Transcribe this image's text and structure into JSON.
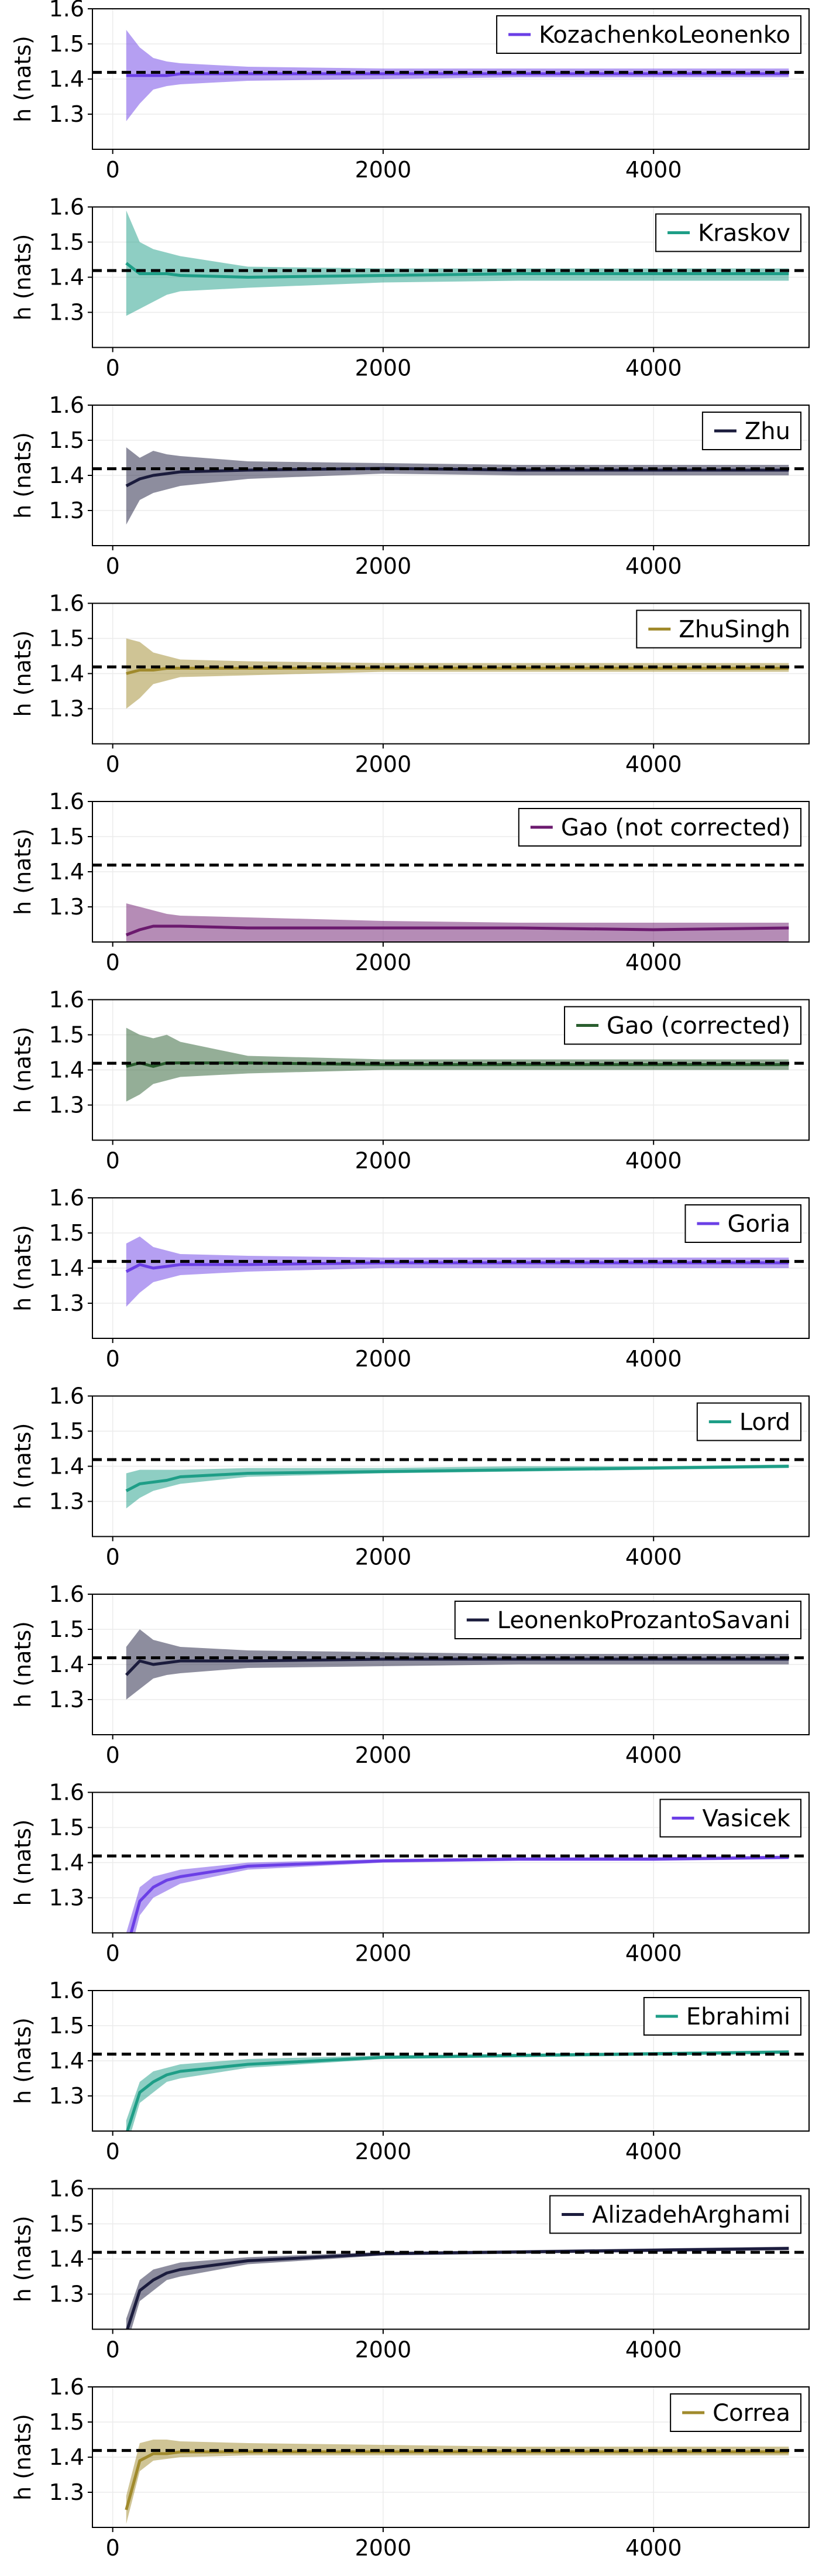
{
  "chart_data": [
    {
      "type": "line",
      "series": [
        {
          "name": "KozachenkoLeonenko",
          "color": "#6b3fe6",
          "x": [
            100,
            200,
            300,
            400,
            500,
            1000,
            2000,
            3000,
            4000,
            5000
          ],
          "mean": [
            1.41,
            1.41,
            1.41,
            1.41,
            1.415,
            1.415,
            1.415,
            1.415,
            1.415,
            1.415
          ],
          "lower": [
            1.28,
            1.33,
            1.37,
            1.38,
            1.385,
            1.395,
            1.4,
            1.405,
            1.405,
            1.405
          ],
          "upper": [
            1.54,
            1.49,
            1.46,
            1.45,
            1.445,
            1.435,
            1.43,
            1.43,
            1.43,
            1.43
          ]
        }
      ],
      "reference_line": 1.4189,
      "xlim": [
        -150,
        5150
      ],
      "ylim": [
        1.2,
        1.6
      ],
      "xticks": [
        0,
        2000,
        4000
      ],
      "yticks": [
        1.3,
        1.4,
        1.5,
        1.6
      ],
      "ylabel": "h (nats)",
      "grid": true,
      "legend_position": "top-right"
    },
    {
      "type": "line",
      "series": [
        {
          "name": "Kraskov",
          "color": "#1e9e87",
          "x": [
            100,
            200,
            300,
            400,
            500,
            1000,
            2000,
            3000,
            4000,
            5000
          ],
          "mean": [
            1.44,
            1.41,
            1.41,
            1.41,
            1.405,
            1.4,
            1.405,
            1.41,
            1.41,
            1.41
          ],
          "lower": [
            1.29,
            1.31,
            1.33,
            1.35,
            1.36,
            1.37,
            1.385,
            1.39,
            1.39,
            1.39
          ],
          "upper": [
            1.59,
            1.5,
            1.48,
            1.47,
            1.46,
            1.43,
            1.425,
            1.425,
            1.425,
            1.425
          ]
        }
      ],
      "reference_line": 1.4189,
      "xlim": [
        -150,
        5150
      ],
      "ylim": [
        1.2,
        1.6
      ],
      "xticks": [
        0,
        2000,
        4000
      ],
      "yticks": [
        1.3,
        1.4,
        1.5,
        1.6
      ],
      "ylabel": "h (nats)",
      "grid": true,
      "legend_position": "top-right"
    },
    {
      "type": "line",
      "series": [
        {
          "name": "Zhu",
          "color": "#1b1c3d",
          "x": [
            100,
            200,
            300,
            400,
            500,
            1000,
            2000,
            3000,
            4000,
            5000
          ],
          "mean": [
            1.37,
            1.39,
            1.4,
            1.405,
            1.41,
            1.415,
            1.42,
            1.415,
            1.415,
            1.415
          ],
          "lower": [
            1.26,
            1.33,
            1.35,
            1.36,
            1.37,
            1.39,
            1.405,
            1.4,
            1.4,
            1.4
          ],
          "upper": [
            1.48,
            1.45,
            1.47,
            1.46,
            1.455,
            1.44,
            1.435,
            1.43,
            1.43,
            1.43
          ]
        }
      ],
      "reference_line": 1.4189,
      "xlim": [
        -150,
        5150
      ],
      "ylim": [
        1.2,
        1.6
      ],
      "xticks": [
        0,
        2000,
        4000
      ],
      "yticks": [
        1.3,
        1.4,
        1.5,
        1.6
      ],
      "ylabel": "h (nats)",
      "grid": true,
      "legend_position": "top-right"
    },
    {
      "type": "line",
      "series": [
        {
          "name": "ZhuSingh",
          "color": "#a08a2c",
          "x": [
            100,
            200,
            300,
            400,
            500,
            1000,
            2000,
            3000,
            4000,
            5000
          ],
          "mean": [
            1.4,
            1.41,
            1.41,
            1.415,
            1.415,
            1.415,
            1.415,
            1.415,
            1.415,
            1.415
          ],
          "lower": [
            1.3,
            1.33,
            1.37,
            1.38,
            1.39,
            1.395,
            1.405,
            1.405,
            1.405,
            1.405
          ],
          "upper": [
            1.5,
            1.49,
            1.46,
            1.45,
            1.44,
            1.435,
            1.43,
            1.43,
            1.43,
            1.43
          ]
        }
      ],
      "reference_line": 1.4189,
      "xlim": [
        -150,
        5150
      ],
      "ylim": [
        1.2,
        1.6
      ],
      "xticks": [
        0,
        2000,
        4000
      ],
      "yticks": [
        1.3,
        1.4,
        1.5,
        1.6
      ],
      "ylabel": "h (nats)",
      "grid": true,
      "legend_position": "top-right"
    },
    {
      "type": "line",
      "series": [
        {
          "name": "Gao (not corrected)",
          "color": "#6b1a6e",
          "x": [
            100,
            200,
            300,
            400,
            500,
            1000,
            2000,
            3000,
            4000,
            5000
          ],
          "mean": [
            1.22,
            1.235,
            1.245,
            1.245,
            1.245,
            1.24,
            1.24,
            1.24,
            1.235,
            1.24
          ],
          "lower": [
            1.2,
            1.2,
            1.2,
            1.2,
            1.2,
            1.2,
            1.2,
            1.2,
            1.2,
            1.2
          ],
          "upper": [
            1.31,
            1.3,
            1.29,
            1.28,
            1.275,
            1.27,
            1.26,
            1.255,
            1.255,
            1.255
          ]
        }
      ],
      "reference_line": 1.4189,
      "xlim": [
        -150,
        5150
      ],
      "ylim": [
        1.2,
        1.6
      ],
      "xticks": [
        0,
        2000,
        4000
      ],
      "yticks": [
        1.3,
        1.4,
        1.5,
        1.6
      ],
      "ylabel": "h (nats)",
      "grid": true,
      "legend_position": "top-right"
    },
    {
      "type": "line",
      "series": [
        {
          "name": "Gao (corrected)",
          "color": "#2a5e2f",
          "x": [
            100,
            200,
            300,
            400,
            500,
            1000,
            2000,
            3000,
            4000,
            5000
          ],
          "mean": [
            1.41,
            1.42,
            1.41,
            1.42,
            1.42,
            1.42,
            1.415,
            1.415,
            1.415,
            1.415
          ],
          "lower": [
            1.31,
            1.33,
            1.36,
            1.37,
            1.38,
            1.39,
            1.4,
            1.4,
            1.4,
            1.4
          ],
          "upper": [
            1.52,
            1.5,
            1.49,
            1.5,
            1.48,
            1.44,
            1.43,
            1.43,
            1.43,
            1.43
          ]
        }
      ],
      "reference_line": 1.4189,
      "xlim": [
        -150,
        5150
      ],
      "ylim": [
        1.2,
        1.6
      ],
      "xticks": [
        0,
        2000,
        4000
      ],
      "yticks": [
        1.3,
        1.4,
        1.5,
        1.6
      ],
      "ylabel": "h (nats)",
      "grid": true,
      "legend_position": "top-right"
    },
    {
      "type": "line",
      "series": [
        {
          "name": "Goria",
          "color": "#6b3fe6",
          "x": [
            100,
            200,
            300,
            400,
            500,
            1000,
            2000,
            3000,
            4000,
            5000
          ],
          "mean": [
            1.39,
            1.41,
            1.4,
            1.405,
            1.41,
            1.41,
            1.415,
            1.415,
            1.415,
            1.415
          ],
          "lower": [
            1.29,
            1.33,
            1.36,
            1.37,
            1.38,
            1.39,
            1.4,
            1.4,
            1.4,
            1.4
          ],
          "upper": [
            1.47,
            1.49,
            1.46,
            1.45,
            1.44,
            1.435,
            1.43,
            1.43,
            1.43,
            1.43
          ]
        }
      ],
      "reference_line": 1.4189,
      "xlim": [
        -150,
        5150
      ],
      "ylim": [
        1.2,
        1.6
      ],
      "xticks": [
        0,
        2000,
        4000
      ],
      "yticks": [
        1.3,
        1.4,
        1.5,
        1.6
      ],
      "ylabel": "h (nats)",
      "grid": true,
      "legend_position": "top-right"
    },
    {
      "type": "line",
      "series": [
        {
          "name": "Lord",
          "color": "#1e9e87",
          "x": [
            100,
            200,
            300,
            400,
            500,
            1000,
            2000,
            3000,
            4000,
            5000
          ],
          "mean": [
            1.33,
            1.35,
            1.355,
            1.36,
            1.37,
            1.38,
            1.385,
            1.39,
            1.395,
            1.4
          ],
          "lower": [
            1.28,
            1.31,
            1.33,
            1.34,
            1.35,
            1.37,
            1.38,
            1.385,
            1.39,
            1.395
          ],
          "upper": [
            1.38,
            1.39,
            1.39,
            1.39,
            1.39,
            1.395,
            1.395,
            1.4,
            1.4,
            1.405
          ]
        }
      ],
      "reference_line": 1.4189,
      "xlim": [
        -150,
        5150
      ],
      "ylim": [
        1.2,
        1.6
      ],
      "xticks": [
        0,
        2000,
        4000
      ],
      "yticks": [
        1.3,
        1.4,
        1.5,
        1.6
      ],
      "ylabel": "h (nats)",
      "grid": true,
      "legend_position": "top-right"
    },
    {
      "type": "line",
      "series": [
        {
          "name": "LeonenkoProzantoSavani",
          "color": "#1b1c3d",
          "x": [
            100,
            200,
            300,
            400,
            500,
            1000,
            2000,
            3000,
            4000,
            5000
          ],
          "mean": [
            1.37,
            1.41,
            1.4,
            1.405,
            1.41,
            1.41,
            1.415,
            1.415,
            1.415,
            1.415
          ],
          "lower": [
            1.3,
            1.33,
            1.36,
            1.37,
            1.375,
            1.39,
            1.395,
            1.4,
            1.4,
            1.4
          ],
          "upper": [
            1.45,
            1.5,
            1.47,
            1.46,
            1.45,
            1.44,
            1.435,
            1.43,
            1.43,
            1.43
          ]
        }
      ],
      "reference_line": 1.4189,
      "xlim": [
        -150,
        5150
      ],
      "ylim": [
        1.2,
        1.6
      ],
      "xticks": [
        0,
        2000,
        4000
      ],
      "yticks": [
        1.3,
        1.4,
        1.5,
        1.6
      ],
      "ylabel": "h (nats)",
      "grid": true,
      "legend_position": "top-right"
    },
    {
      "type": "line",
      "series": [
        {
          "name": "Vasicek",
          "color": "#6b3fe6",
          "x": [
            100,
            200,
            300,
            400,
            500,
            1000,
            2000,
            3000,
            4000,
            5000
          ],
          "mean": [
            1.15,
            1.29,
            1.33,
            1.35,
            1.36,
            1.39,
            1.405,
            1.41,
            1.41,
            1.415
          ],
          "lower": [
            1.1,
            1.25,
            1.3,
            1.32,
            1.34,
            1.38,
            1.4,
            1.405,
            1.405,
            1.41
          ],
          "upper": [
            1.2,
            1.33,
            1.36,
            1.37,
            1.38,
            1.4,
            1.41,
            1.415,
            1.415,
            1.42
          ]
        }
      ],
      "reference_line": 1.4189,
      "xlim": [
        -150,
        5150
      ],
      "ylim": [
        1.2,
        1.6
      ],
      "xticks": [
        0,
        2000,
        4000
      ],
      "yticks": [
        1.3,
        1.4,
        1.5,
        1.6
      ],
      "ylabel": "h (nats)",
      "grid": true,
      "legend_position": "top-right"
    },
    {
      "type": "line",
      "series": [
        {
          "name": "Ebrahimi",
          "color": "#1e9e87",
          "x": [
            100,
            200,
            300,
            400,
            500,
            1000,
            2000,
            3000,
            4000,
            5000
          ],
          "mean": [
            1.19,
            1.31,
            1.34,
            1.36,
            1.37,
            1.39,
            1.41,
            1.415,
            1.42,
            1.425
          ],
          "lower": [
            1.15,
            1.28,
            1.31,
            1.34,
            1.35,
            1.38,
            1.405,
            1.41,
            1.415,
            1.42
          ],
          "upper": [
            1.23,
            1.34,
            1.37,
            1.38,
            1.39,
            1.405,
            1.415,
            1.42,
            1.425,
            1.43
          ]
        }
      ],
      "reference_line": 1.4189,
      "xlim": [
        -150,
        5150
      ],
      "ylim": [
        1.2,
        1.6
      ],
      "xticks": [
        0,
        2000,
        4000
      ],
      "yticks": [
        1.3,
        1.4,
        1.5,
        1.6
      ],
      "ylabel": "h (nats)",
      "grid": true,
      "legend_position": "top-right"
    },
    {
      "type": "line",
      "series": [
        {
          "name": "AlizadehArghami",
          "color": "#1b1c3d",
          "x": [
            100,
            200,
            300,
            400,
            500,
            1000,
            2000,
            3000,
            4000,
            5000
          ],
          "mean": [
            1.19,
            1.31,
            1.34,
            1.36,
            1.37,
            1.395,
            1.415,
            1.42,
            1.425,
            1.43
          ],
          "lower": [
            1.15,
            1.28,
            1.31,
            1.34,
            1.35,
            1.385,
            1.41,
            1.415,
            1.42,
            1.425
          ],
          "upper": [
            1.23,
            1.34,
            1.37,
            1.38,
            1.39,
            1.405,
            1.42,
            1.425,
            1.43,
            1.435
          ]
        }
      ],
      "reference_line": 1.4189,
      "xlim": [
        -150,
        5150
      ],
      "ylim": [
        1.2,
        1.6
      ],
      "xticks": [
        0,
        2000,
        4000
      ],
      "yticks": [
        1.3,
        1.4,
        1.5,
        1.6
      ],
      "ylabel": "h (nats)",
      "grid": true,
      "legend_position": "top-right"
    },
    {
      "type": "line",
      "series": [
        {
          "name": "Correa",
          "color": "#a08a2c",
          "x": [
            100,
            200,
            300,
            400,
            500,
            1000,
            2000,
            3000,
            4000,
            5000
          ],
          "mean": [
            1.25,
            1.39,
            1.41,
            1.41,
            1.415,
            1.415,
            1.415,
            1.415,
            1.415,
            1.415
          ],
          "lower": [
            1.21,
            1.36,
            1.39,
            1.395,
            1.4,
            1.405,
            1.405,
            1.405,
            1.405,
            1.405
          ],
          "upper": [
            1.29,
            1.44,
            1.45,
            1.45,
            1.445,
            1.44,
            1.435,
            1.43,
            1.43,
            1.43
          ]
        }
      ],
      "reference_line": 1.4189,
      "xlim": [
        -150,
        5150
      ],
      "ylim": [
        1.2,
        1.6
      ],
      "xticks": [
        0,
        2000,
        4000
      ],
      "yticks": [
        1.3,
        1.4,
        1.5,
        1.6
      ],
      "ylabel": "h (nats)",
      "grid": true,
      "legend_position": "top-right"
    }
  ]
}
